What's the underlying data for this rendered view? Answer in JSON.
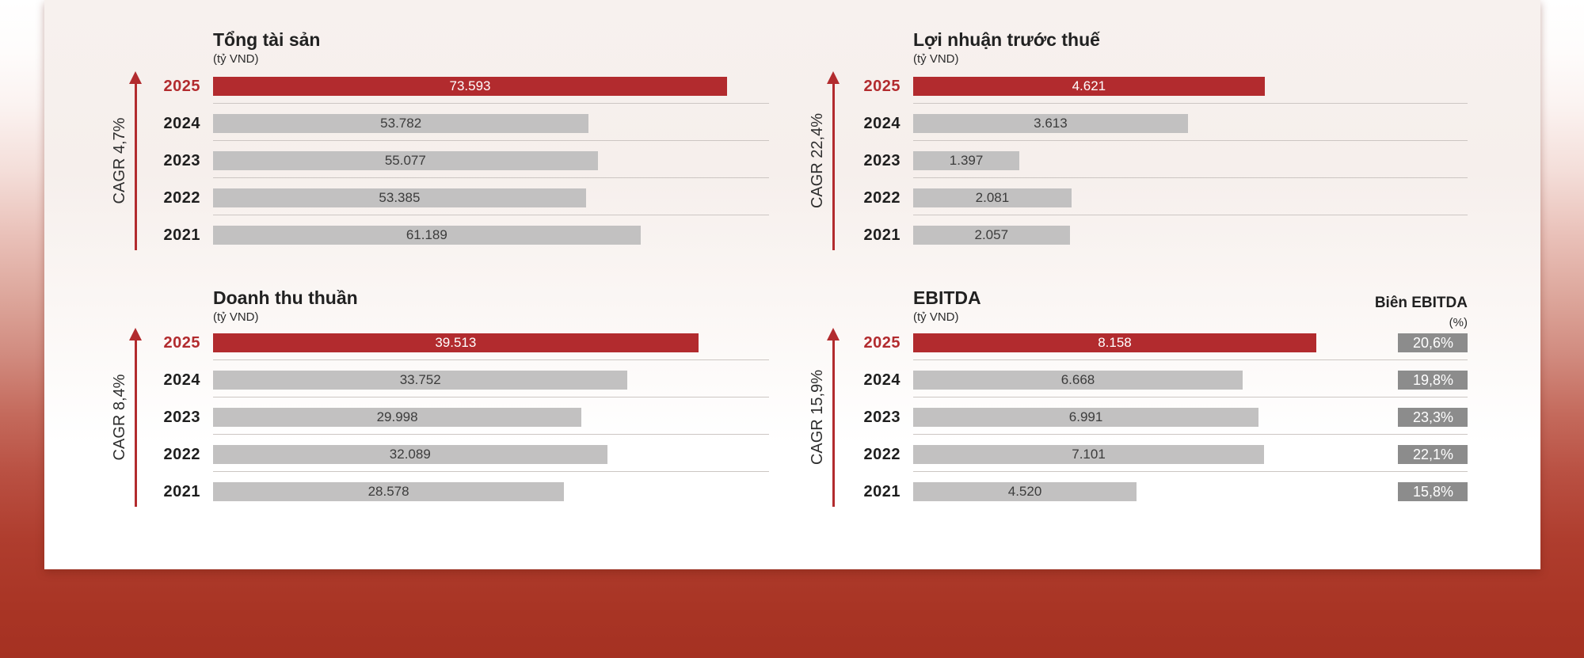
{
  "colors": {
    "accent_red": "#b22b2e",
    "bar_gray": "#c2c1c1",
    "badge_gray": "#8c8c8c",
    "separator": "#ccc6c3",
    "background_bottom_red": "#a53122"
  },
  "chart_data": [
    {
      "type": "bar",
      "orientation": "horizontal",
      "title": "Tổng tài sản",
      "unit": "(tỷ VND)",
      "cagr": "CAGR 4,7%",
      "categories": [
        "2025",
        "2024",
        "2023",
        "2022",
        "2021"
      ],
      "values": [
        73593,
        53782,
        55077,
        53385,
        61189
      ],
      "value_labels": [
        "73.593",
        "53.782",
        "55.077",
        "53.385",
        "61.189"
      ],
      "highlight_category": "2025",
      "xlim": [
        0,
        79600
      ]
    },
    {
      "type": "bar",
      "orientation": "horizontal",
      "title": "Lợi nhuận trước thuế",
      "unit": "(tỷ VND)",
      "cagr": "CAGR 22,4%",
      "categories": [
        "2025",
        "2024",
        "2023",
        "2022",
        "2021"
      ],
      "values": [
        4621,
        3613,
        1397,
        2081,
        2057
      ],
      "value_labels": [
        "4.621",
        "3.613",
        "1.397",
        "2.081",
        "2.057"
      ],
      "highlight_category": "2025",
      "xlim": [
        0,
        7290
      ]
    },
    {
      "type": "bar",
      "orientation": "horizontal",
      "title": "Doanh thu thuần",
      "unit": "(tỷ VND)",
      "cagr": "CAGR 8,4%",
      "categories": [
        "2025",
        "2024",
        "2023",
        "2022",
        "2021"
      ],
      "values": [
        39513,
        33752,
        29998,
        32089,
        28578
      ],
      "value_labels": [
        "39.513",
        "33.752",
        "29.998",
        "32.089",
        "28.578"
      ],
      "highlight_category": "2025",
      "xlim": [
        0,
        45270
      ]
    },
    {
      "type": "bar",
      "orientation": "horizontal",
      "title": "EBITDA",
      "unit": "(tỷ VND)",
      "cagr": "CAGR 15,9%",
      "categories": [
        "2025",
        "2024",
        "2023",
        "2022",
        "2021"
      ],
      "values": [
        8158,
        6668,
        6991,
        7101,
        4520
      ],
      "value_labels": [
        "8.158",
        "6.668",
        "6.991",
        "7.101",
        "4.520"
      ],
      "highlight_category": "2025",
      "xlim": [
        0,
        11220
      ],
      "margin_header": {
        "title": "Biên EBITDA",
        "unit": "(%)"
      },
      "margin_series": {
        "name": "Biên EBITDA (%)",
        "labels": [
          "20,6%",
          "19,8%",
          "23,3%",
          "22,1%",
          "15,8%"
        ],
        "values": [
          20.6,
          19.8,
          23.3,
          22.1,
          15.8
        ]
      }
    }
  ]
}
